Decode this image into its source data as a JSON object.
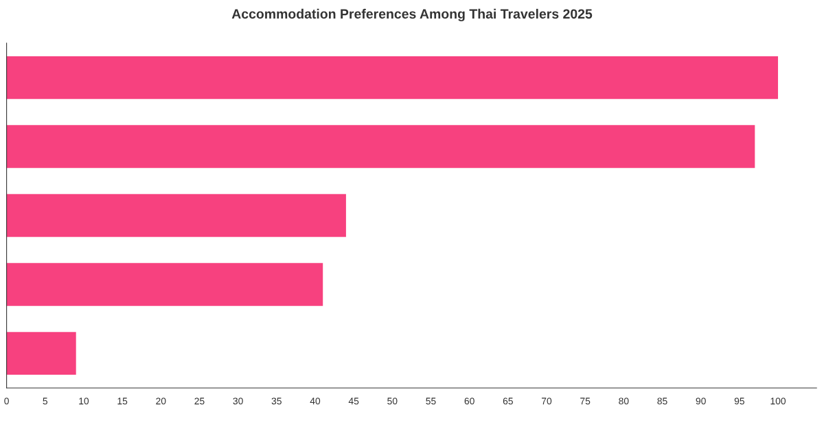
{
  "chart_data": {
    "type": "bar",
    "orientation": "horizontal",
    "title": "Accommodation Preferences Among Thai Travelers 2025",
    "categories": [
      null,
      null,
      null,
      null,
      null
    ],
    "values": [
      100,
      97,
      44,
      41,
      9
    ],
    "color": "#f7417f",
    "xlim": [
      0,
      105
    ],
    "xticks": [
      0,
      5,
      10,
      15,
      20,
      25,
      30,
      35,
      40,
      45,
      50,
      55,
      60,
      65,
      70,
      75,
      80,
      85,
      90,
      95,
      100
    ],
    "grid": false,
    "legend": false
  }
}
